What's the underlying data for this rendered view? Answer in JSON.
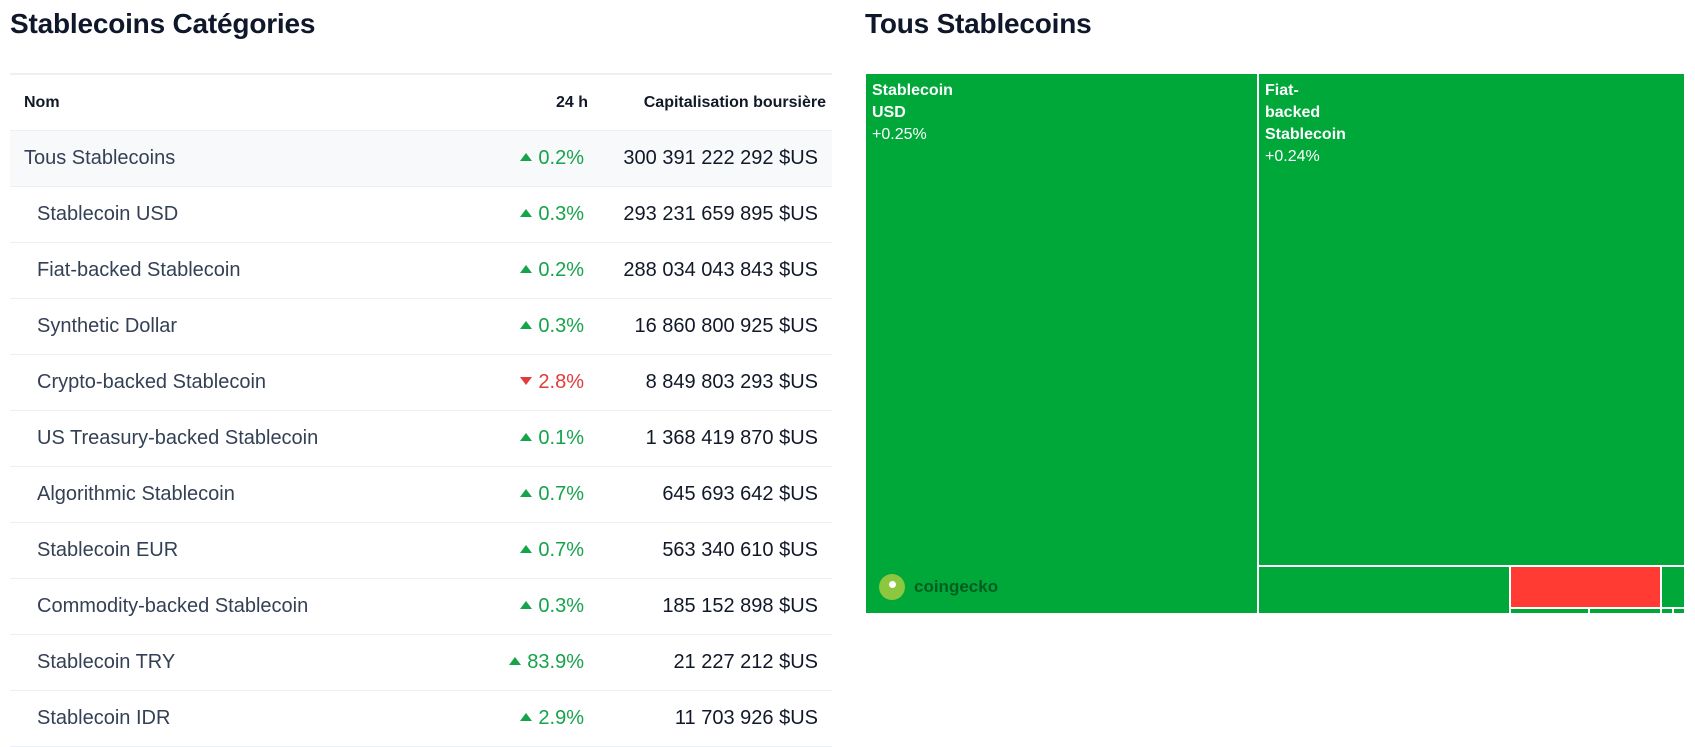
{
  "left": {
    "title": "Stablecoins Catégories",
    "columns": {
      "name": "Nom",
      "change": "24 h",
      "cap": "Capitalisation boursière"
    },
    "rows": [
      {
        "name": "Tous Stablecoins",
        "change": "0.2%",
        "dir": "up",
        "cap": "300 391 222 292 $US"
      },
      {
        "name": "Stablecoin USD",
        "change": "0.3%",
        "dir": "up",
        "cap": "293 231 659 895 $US"
      },
      {
        "name": "Fiat-backed Stablecoin",
        "change": "0.2%",
        "dir": "up",
        "cap": "288 034 043 843 $US"
      },
      {
        "name": "Synthetic Dollar",
        "change": "0.3%",
        "dir": "up",
        "cap": "16 860 800 925 $US"
      },
      {
        "name": "Crypto-backed Stablecoin",
        "change": "2.8%",
        "dir": "down",
        "cap": "8 849 803 293 $US"
      },
      {
        "name": "US Treasury-backed Stablecoin",
        "change": "0.1%",
        "dir": "up",
        "cap": "1 368 419 870 $US"
      },
      {
        "name": "Algorithmic Stablecoin",
        "change": "0.7%",
        "dir": "up",
        "cap": "645 693 642 $US"
      },
      {
        "name": "Stablecoin EUR",
        "change": "0.7%",
        "dir": "up",
        "cap": "563 340 610 $US"
      },
      {
        "name": "Commodity-backed Stablecoin",
        "change": "0.3%",
        "dir": "up",
        "cap": "185 152 898 $US"
      },
      {
        "name": "Stablecoin TRY",
        "change": "83.9%",
        "dir": "up",
        "cap": "21 227 212 $US"
      },
      {
        "name": "Stablecoin IDR",
        "change": "2.9%",
        "dir": "up",
        "cap": "11 703 926 $US"
      }
    ]
  },
  "right": {
    "title": "Tous Stablecoins",
    "watermark": "coingecko",
    "tiles": [
      {
        "name": "Stablecoin USD",
        "lines": [
          "Stablecoin",
          "USD"
        ],
        "change": "+0.25%"
      },
      {
        "name": "Fiat-backed Stablecoin",
        "lines": [
          "Fiat-",
          "backed",
          "Stablecoin"
        ],
        "change": "+0.24%"
      }
    ]
  },
  "colors": {
    "up": "#16a34a",
    "down": "#e23b3b",
    "treemap_green": "#00a83a",
    "treemap_red": "#ff3b34"
  }
}
